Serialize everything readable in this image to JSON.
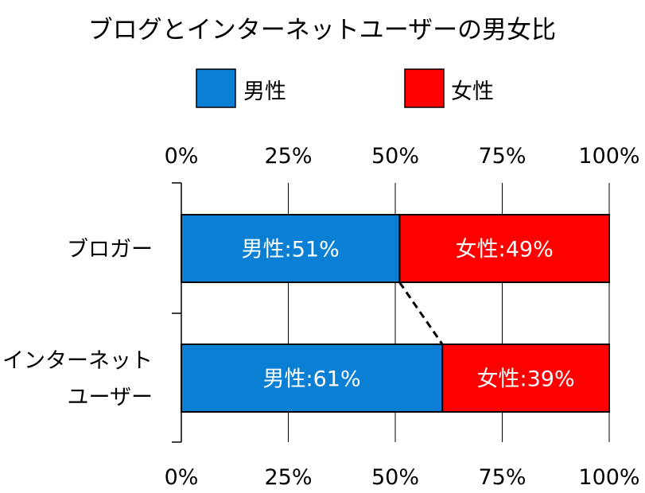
{
  "chart_data": {
    "type": "bar",
    "orientation": "horizontal",
    "stacked": "percent",
    "title": "ブログとインターネットユーザーの男女比",
    "categories": [
      [
        "ブロガー"
      ],
      [
        "インターネット",
        "ユーザー"
      ]
    ],
    "series": [
      {
        "name": "男性",
        "color": "#0a7fd4",
        "values": [
          51,
          61
        ],
        "labels": [
          "男性:51%",
          "男性:61%"
        ]
      },
      {
        "name": "女性",
        "color": "#ff0000",
        "values": [
          49,
          39
        ],
        "labels": [
          "女性:49%",
          "女性:39%"
        ]
      }
    ],
    "xlim": [
      0,
      100
    ],
    "xticks": [
      0,
      25,
      50,
      75,
      100
    ],
    "xtick_labels": [
      "0%",
      "25%",
      "50%",
      "75%",
      "100%"
    ],
    "tick_labels_top": true,
    "tick_labels_bottom": true,
    "legend_position": "top",
    "grid": true,
    "connector_line": "dashed"
  }
}
